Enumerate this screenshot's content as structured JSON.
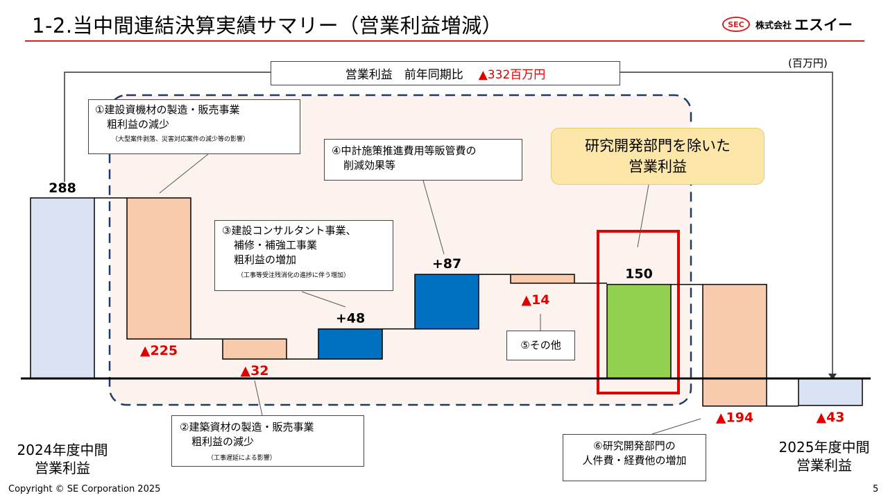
{
  "header": {
    "title": "1-2.当中間連結決算実績サマリー（営業利益増減）",
    "logo_mark": "SEC",
    "logo_text1": "株式会社",
    "logo_text2": "エスイー"
  },
  "unit": "(百万円)",
  "summary": {
    "label": "営業利益　前年同期比",
    "value": "▲332百万円"
  },
  "highlight": {
    "line1": "研究開発部門を除いた",
    "line2": "営業利益"
  },
  "notes": {
    "n1": {
      "line1": "①建設資機材の製造・販売事業",
      "line2": "粗利益の減少",
      "small": "（大型案件剥落、災害対応案件の減少等の影響）"
    },
    "n2": {
      "line1": "②建築資材の製造・販売事業",
      "line2": "粗利益の減少",
      "small": "（工事遅延による影響）"
    },
    "n3": {
      "line1": "③建設コンサルタント事業、",
      "line2": "補修・補強工事業",
      "line3": "粗利益の増加",
      "small": "（工事等受注残消化の進捗に伴う増加）"
    },
    "n4": {
      "line1": "④中計施策推進費用等販管費の",
      "line2": "削減効果等"
    },
    "n5": {
      "line1": "⑤その他"
    },
    "n6": {
      "line1": "⑥研究開発部門の",
      "line2": "人件費・経費他の増加"
    }
  },
  "side_labels": {
    "left_line1": "2024年度中間",
    "left_line2": "営業利益",
    "right_line1": "2025年度中間",
    "right_line2": "営業利益"
  },
  "footer": {
    "copyright": "Copyright © SE Corporation 2025",
    "page": "5"
  },
  "colors": {
    "accent_red": "#e00000",
    "rule_red": "#d61f1f",
    "total_blue": "#dae3f3",
    "decrease_peach": "#f8cbad",
    "increase_blue": "#0070c0",
    "subtotal_green": "#92d050",
    "highlight_fill": "#fde7a8",
    "dashed_region_fill": "#fdf3ee",
    "dashed_region_border": "#1f3864"
  },
  "chart_data": {
    "type": "waterfall",
    "unit": "百万円",
    "steps": [
      {
        "id": "start",
        "kind": "total",
        "value": 288,
        "label": "288"
      },
      {
        "id": "s1",
        "kind": "decrease",
        "value": -225,
        "label": "▲225"
      },
      {
        "id": "s2",
        "kind": "decrease",
        "value": -32,
        "label": "▲32"
      },
      {
        "id": "s3",
        "kind": "increase",
        "value": 48,
        "label": "+48"
      },
      {
        "id": "s4",
        "kind": "increase",
        "value": 87,
        "label": "+87"
      },
      {
        "id": "s5",
        "kind": "decrease",
        "value": -14,
        "label": "▲14"
      },
      {
        "id": "sub",
        "kind": "subtotal",
        "value": 150,
        "label": "150"
      },
      {
        "id": "s6",
        "kind": "decrease",
        "value": -194,
        "label": "▲194"
      },
      {
        "id": "end",
        "kind": "total",
        "value": -43,
        "label": "▲43"
      }
    ]
  }
}
